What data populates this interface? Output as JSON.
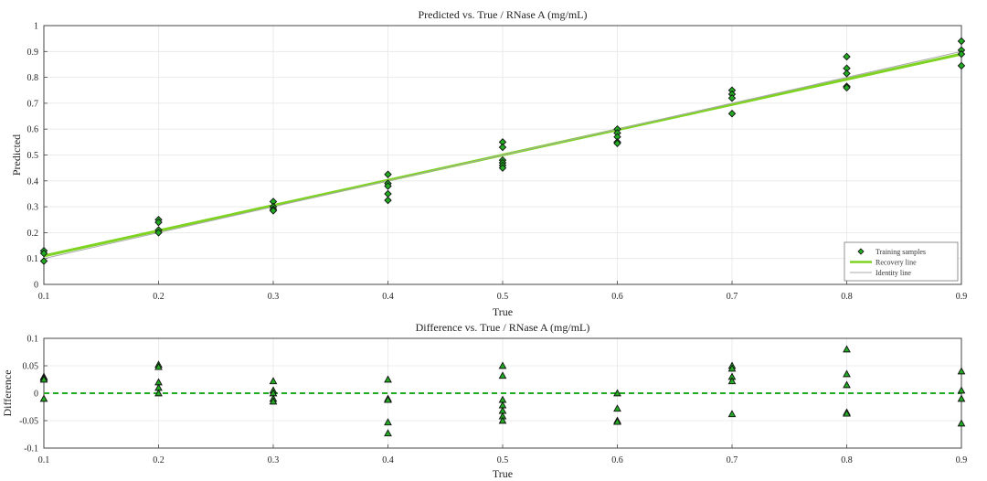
{
  "chart_data": [
    {
      "type": "scatter",
      "title": "Predicted vs. True / RNase A (mg/mL)",
      "xlabel": "True",
      "ylabel": "Predicted",
      "xlim": [
        0.1,
        0.9
      ],
      "ylim": [
        0,
        1
      ],
      "xticks": [
        "0.1",
        "0.2",
        "0.3",
        "0.4",
        "0.5",
        "0.6",
        "0.7",
        "0.8",
        "0.9"
      ],
      "yticks": [
        "0",
        "0.1",
        "0.2",
        "0.3",
        "0.4",
        "0.5",
        "0.6",
        "0.7",
        "0.8",
        "0.9",
        "1"
      ],
      "grid": true,
      "legend_position": "bottom-right",
      "series": [
        {
          "name": "Training samples",
          "marker": "diamond",
          "color": "#22aa22",
          "points": [
            [
              0.1,
              0.13
            ],
            [
              0.1,
              0.12
            ],
            [
              0.1,
              0.09
            ],
            [
              0.2,
              0.25
            ],
            [
              0.2,
              0.24
            ],
            [
              0.2,
              0.21
            ],
            [
              0.2,
              0.2
            ],
            [
              0.3,
              0.32
            ],
            [
              0.3,
              0.3
            ],
            [
              0.3,
              0.29
            ],
            [
              0.3,
              0.285
            ],
            [
              0.4,
              0.425
            ],
            [
              0.4,
              0.39
            ],
            [
              0.4,
              0.38
            ],
            [
              0.4,
              0.35
            ],
            [
              0.4,
              0.325
            ],
            [
              0.5,
              0.55
            ],
            [
              0.5,
              0.53
            ],
            [
              0.5,
              0.48
            ],
            [
              0.5,
              0.47
            ],
            [
              0.5,
              0.46
            ],
            [
              0.5,
              0.45
            ],
            [
              0.6,
              0.6
            ],
            [
              0.6,
              0.585
            ],
            [
              0.6,
              0.57
            ],
            [
              0.6,
              0.55
            ],
            [
              0.6,
              0.545
            ],
            [
              0.7,
              0.75
            ],
            [
              0.7,
              0.735
            ],
            [
              0.7,
              0.72
            ],
            [
              0.7,
              0.66
            ],
            [
              0.8,
              0.88
            ],
            [
              0.8,
              0.835
            ],
            [
              0.8,
              0.815
            ],
            [
              0.8,
              0.765
            ],
            [
              0.8,
              0.76
            ],
            [
              0.9,
              0.94
            ],
            [
              0.9,
              0.905
            ],
            [
              0.9,
              0.89
            ],
            [
              0.9,
              0.845
            ]
          ]
        },
        {
          "name": "Recovery line",
          "type": "line",
          "color": "#7ed321",
          "x": [
            0.1,
            0.9
          ],
          "y": [
            0.11,
            0.89
          ]
        },
        {
          "name": "Identity line",
          "type": "line",
          "color": "#aaaaaa",
          "x": [
            0.1,
            0.9
          ],
          "y": [
            0.1,
            0.9
          ]
        }
      ]
    },
    {
      "type": "scatter",
      "title": "Difference vs. True / RNase A (mg/mL)",
      "xlabel": "True",
      "ylabel": "Difference",
      "xlim": [
        0.1,
        0.9
      ],
      "ylim": [
        -0.1,
        0.1
      ],
      "xticks": [
        "0.1",
        "0.2",
        "0.3",
        "0.4",
        "0.5",
        "0.6",
        "0.7",
        "0.8",
        "0.9"
      ],
      "yticks": [
        "-0.1",
        "-0.05",
        "0",
        "0.05",
        "0.1"
      ],
      "grid": true,
      "zero_line": {
        "y": 0,
        "style": "dashed",
        "color": "#22aa22"
      },
      "series": [
        {
          "marker": "triangle",
          "color": "#22aa22",
          "points": [
            [
              0.1,
              0.03
            ],
            [
              0.1,
              0.028
            ],
            [
              0.1,
              0.025
            ],
            [
              0.1,
              -0.01
            ],
            [
              0.2,
              0.052
            ],
            [
              0.2,
              0.048
            ],
            [
              0.2,
              0.02
            ],
            [
              0.2,
              0.01
            ],
            [
              0.2,
              0.0
            ],
            [
              0.3,
              0.022
            ],
            [
              0.3,
              0.005
            ],
            [
              0.3,
              0.0
            ],
            [
              0.3,
              -0.01
            ],
            [
              0.3,
              -0.015
            ],
            [
              0.4,
              0.025
            ],
            [
              0.4,
              -0.01
            ],
            [
              0.4,
              -0.012
            ],
            [
              0.4,
              -0.053
            ],
            [
              0.4,
              -0.073
            ],
            [
              0.5,
              0.05
            ],
            [
              0.5,
              0.032
            ],
            [
              0.5,
              -0.012
            ],
            [
              0.5,
              -0.022
            ],
            [
              0.5,
              -0.032
            ],
            [
              0.5,
              -0.042
            ],
            [
              0.5,
              -0.05
            ],
            [
              0.6,
              0.0
            ],
            [
              0.6,
              -0.028
            ],
            [
              0.6,
              -0.05
            ],
            [
              0.6,
              -0.052
            ],
            [
              0.7,
              0.05
            ],
            [
              0.7,
              0.045
            ],
            [
              0.7,
              0.03
            ],
            [
              0.7,
              0.022
            ],
            [
              0.7,
              -0.038
            ],
            [
              0.8,
              0.08
            ],
            [
              0.8,
              0.035
            ],
            [
              0.8,
              0.015
            ],
            [
              0.8,
              -0.035
            ],
            [
              0.8,
              -0.037
            ],
            [
              0.9,
              0.04
            ],
            [
              0.9,
              0.005
            ],
            [
              0.9,
              -0.01
            ],
            [
              0.9,
              -0.055
            ]
          ]
        }
      ]
    }
  ]
}
